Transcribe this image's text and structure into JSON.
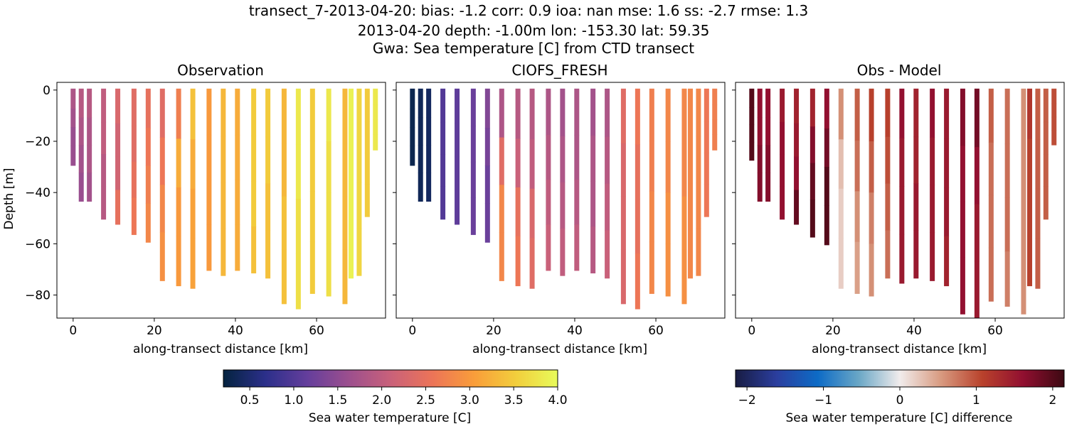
{
  "figure": {
    "title_lines": [
      "transect_7-2013-04-20: bias: -1.2  corr: 0.9  ioa: nan  mse: 1.6  ss: -2.7  rmse: 1.3",
      "2013-04-20 depth: -1.00m lon: -153.30 lat: 59.35",
      "Gwa: Sea temperature [C] from CTD transect"
    ]
  },
  "chart_data": [
    {
      "type": "scatter",
      "title": "Observation",
      "xlabel": "along-transect distance [km]",
      "ylabel": "Depth [m]",
      "xlim": [
        -4,
        77
      ],
      "ylim": [
        -89,
        3
      ],
      "xticks": [
        0,
        20,
        40,
        60
      ],
      "yticks": [
        0,
        -20,
        -40,
        -60,
        -80
      ],
      "colormap": "thermal",
      "stations": [
        {
          "x": 0,
          "bottom": -29,
          "v": [
            1.8,
            1.7,
            1.6,
            1.6
          ]
        },
        {
          "x": 2,
          "bottom": -43,
          "v": [
            1.9,
            1.8,
            1.7,
            1.6
          ]
        },
        {
          "x": 4,
          "bottom": -43,
          "v": [
            1.9,
            1.8,
            1.8,
            1.7
          ]
        },
        {
          "x": 7.5,
          "bottom": -50,
          "v": [
            2.0,
            2.0,
            1.9,
            1.9
          ]
        },
        {
          "x": 11,
          "bottom": -52,
          "v": [
            2.3,
            2.2,
            2.2,
            2.5
          ]
        },
        {
          "x": 15,
          "bottom": -56,
          "v": [
            2.4,
            2.4,
            2.5,
            2.6
          ]
        },
        {
          "x": 18.5,
          "bottom": -59,
          "v": [
            2.5,
            2.6,
            2.7,
            2.8
          ]
        },
        {
          "x": 22,
          "bottom": -74,
          "v": [
            2.4,
            2.6,
            2.8,
            2.9
          ]
        },
        {
          "x": 26,
          "bottom": -76,
          "v": [
            2.7,
            3.2,
            3.0,
            3.0
          ]
        },
        {
          "x": 29.5,
          "bottom": -77,
          "v": [
            3.4,
            3.2,
            3.1,
            3.1
          ]
        },
        {
          "x": 33.5,
          "bottom": -70,
          "v": [
            3.0,
            3.0,
            3.0,
            3.0
          ]
        },
        {
          "x": 37,
          "bottom": -72,
          "v": [
            3.3,
            3.3,
            3.3,
            3.3
          ]
        },
        {
          "x": 40.5,
          "bottom": -70,
          "v": [
            3.2,
            3.2,
            3.2,
            3.2
          ]
        },
        {
          "x": 44.5,
          "bottom": -71,
          "v": [
            3.5,
            3.5,
            3.5,
            3.4
          ]
        },
        {
          "x": 48,
          "bottom": -73,
          "v": [
            3.5,
            3.5,
            3.4,
            3.4
          ]
        },
        {
          "x": 52,
          "bottom": -83,
          "v": [
            3.3,
            3.3,
            3.4,
            3.4
          ]
        },
        {
          "x": 55.5,
          "bottom": -85,
          "v": [
            3.8,
            3.8,
            3.7,
            3.7
          ]
        },
        {
          "x": 59,
          "bottom": -79,
          "v": [
            3.5,
            3.5,
            3.5,
            3.5
          ]
        },
        {
          "x": 63,
          "bottom": -80,
          "v": [
            3.8,
            3.7,
            3.7,
            3.7
          ]
        },
        {
          "x": 67,
          "bottom": -83,
          "v": [
            3.3,
            3.3,
            3.3,
            3.3
          ]
        },
        {
          "x": 68.5,
          "bottom": -73,
          "v": [
            3.9,
            3.9,
            3.9,
            3.9
          ]
        },
        {
          "x": 70.5,
          "bottom": -72,
          "v": [
            3.6,
            3.6,
            3.6,
            3.6
          ]
        },
        {
          "x": 72.5,
          "bottom": -49,
          "v": [
            3.5,
            3.5,
            3.5,
            3.5
          ]
        },
        {
          "x": 74.5,
          "bottom": -23,
          "v": [
            3.8,
            3.8,
            3.8,
            3.8
          ]
        }
      ]
    },
    {
      "type": "scatter",
      "title": "CIOFS_FRESH",
      "xlabel": "along-transect distance [km]",
      "ylabel": "",
      "xlim": [
        -4,
        77
      ],
      "ylim": [
        -89,
        3
      ],
      "xticks": [
        0,
        20,
        40,
        60
      ],
      "yticks": [
        0,
        -20,
        -40,
        -60,
        -80
      ],
      "colormap": "thermal",
      "stations": [
        {
          "x": 0,
          "bottom": -29,
          "v": [
            0.3,
            0.3,
            0.3,
            0.3
          ]
        },
        {
          "x": 2,
          "bottom": -43,
          "v": [
            0.35,
            0.35,
            0.35,
            0.35
          ]
        },
        {
          "x": 4,
          "bottom": -43,
          "v": [
            0.4,
            0.4,
            0.4,
            0.4
          ]
        },
        {
          "x": 7.5,
          "bottom": -50,
          "v": [
            1.0,
            1.0,
            1.0,
            1.0
          ]
        },
        {
          "x": 11,
          "bottom": -52,
          "v": [
            1.1,
            1.1,
            1.1,
            1.1
          ]
        },
        {
          "x": 15,
          "bottom": -56,
          "v": [
            1.2,
            1.2,
            1.2,
            1.2
          ]
        },
        {
          "x": 18.5,
          "bottom": -59,
          "v": [
            1.4,
            1.3,
            1.2,
            1.2
          ]
        },
        {
          "x": 22,
          "bottom": -74,
          "v": [
            1.8,
            2.4,
            2.8,
            2.8
          ]
        },
        {
          "x": 26,
          "bottom": -76,
          "v": [
            1.9,
            2.1,
            2.5,
            2.6
          ]
        },
        {
          "x": 29.5,
          "bottom": -77,
          "v": [
            1.9,
            2.0,
            2.3,
            2.4
          ]
        },
        {
          "x": 33.5,
          "bottom": -70,
          "v": [
            1.8,
            1.9,
            2.0,
            2.1
          ]
        },
        {
          "x": 37,
          "bottom": -72,
          "v": [
            1.7,
            1.8,
            1.9,
            2.0
          ]
        },
        {
          "x": 40.5,
          "bottom": -70,
          "v": [
            1.8,
            1.8,
            1.9,
            2.0
          ]
        },
        {
          "x": 44.5,
          "bottom": -71,
          "v": [
            1.7,
            1.8,
            1.8,
            1.9
          ]
        },
        {
          "x": 48,
          "bottom": -73,
          "v": [
            1.8,
            1.9,
            2.0,
            2.1
          ]
        },
        {
          "x": 52,
          "bottom": -83,
          "v": [
            2.4,
            2.3,
            2.3,
            2.3
          ]
        },
        {
          "x": 55.5,
          "bottom": -85,
          "v": [
            2.6,
            2.5,
            2.5,
            2.6
          ]
        },
        {
          "x": 59,
          "bottom": -79,
          "v": [
            2.7,
            2.7,
            2.8,
            2.8
          ]
        },
        {
          "x": 63,
          "bottom": -80,
          "v": [
            2.8,
            2.8,
            2.9,
            2.9
          ]
        },
        {
          "x": 67,
          "bottom": -83,
          "v": [
            2.8,
            2.8,
            2.9,
            2.9
          ]
        },
        {
          "x": 68.5,
          "bottom": -73,
          "v": [
            2.8,
            2.8,
            2.8,
            2.8
          ]
        },
        {
          "x": 70.5,
          "bottom": -72,
          "v": [
            2.8,
            2.8,
            2.8,
            2.8
          ]
        },
        {
          "x": 72.5,
          "bottom": -49,
          "v": [
            2.6,
            2.6,
            2.6,
            2.6
          ]
        },
        {
          "x": 74.5,
          "bottom": -23,
          "v": [
            2.7,
            2.7,
            2.7,
            2.7
          ]
        }
      ]
    },
    {
      "type": "scatter",
      "title": "Obs - Model",
      "xlabel": "along-transect distance [km]",
      "ylabel": "",
      "xlim": [
        -4,
        77
      ],
      "ylim": [
        -89,
        3
      ],
      "xticks": [
        0,
        20,
        40,
        60
      ],
      "yticks": [
        0,
        -20,
        -40,
        -60,
        -80
      ],
      "colormap": "balance",
      "stations": [
        {
          "x": 0,
          "bottom": -27,
          "v": [
            2.0,
            2.0,
            2.0,
            2.0
          ]
        },
        {
          "x": 2,
          "bottom": -43,
          "v": [
            1.6,
            1.6,
            1.7,
            1.7
          ]
        },
        {
          "x": 4,
          "bottom": -43,
          "v": [
            1.6,
            1.6,
            1.7,
            1.7
          ]
        },
        {
          "x": 7.5,
          "bottom": -50,
          "v": [
            1.5,
            1.6,
            1.6,
            1.6
          ]
        },
        {
          "x": 11,
          "bottom": -52,
          "v": [
            1.4,
            1.5,
            1.6,
            1.9
          ]
        },
        {
          "x": 15,
          "bottom": -57,
          "v": [
            1.4,
            1.7,
            1.9,
            2.0
          ]
        },
        {
          "x": 18.5,
          "bottom": -60,
          "v": [
            1.6,
            1.8,
            2.0,
            2.0
          ]
        },
        {
          "x": 22,
          "bottom": -77,
          "v": [
            0.6,
            0.3,
            0.2,
            0.2
          ]
        },
        {
          "x": 26,
          "bottom": -79,
          "v": [
            0.9,
            0.8,
            0.6,
            0.5
          ]
        },
        {
          "x": 29.5,
          "bottom": -80,
          "v": [
            1.1,
            0.9,
            0.7,
            0.6
          ]
        },
        {
          "x": 33.5,
          "bottom": -73,
          "v": [
            1.1,
            1.0,
            0.9,
            0.8
          ]
        },
        {
          "x": 37,
          "bottom": -75,
          "v": [
            1.6,
            1.5,
            1.5,
            1.5
          ]
        },
        {
          "x": 40.5,
          "bottom": -73,
          "v": [
            1.4,
            1.4,
            1.5,
            1.5
          ]
        },
        {
          "x": 44.5,
          "bottom": -74,
          "v": [
            1.6,
            1.5,
            1.5,
            1.5
          ]
        },
        {
          "x": 48,
          "bottom": -76,
          "v": [
            1.5,
            1.5,
            1.5,
            1.4
          ]
        },
        {
          "x": 52,
          "bottom": -87,
          "v": [
            1.7,
            1.6,
            1.6,
            1.6
          ]
        },
        {
          "x": 55.5,
          "bottom": -89,
          "v": [
            1.8,
            1.6,
            1.5,
            1.5
          ]
        },
        {
          "x": 59,
          "bottom": -82,
          "v": [
            0.9,
            0.8,
            0.8,
            0.8
          ]
        },
        {
          "x": 63,
          "bottom": -84,
          "v": [
            0.8,
            0.8,
            0.8,
            0.7
          ]
        },
        {
          "x": 67,
          "bottom": -87,
          "v": [
            0.6,
            0.6,
            0.6,
            0.6
          ]
        },
        {
          "x": 68.5,
          "bottom": -76,
          "v": [
            1.2,
            1.1,
            1.1,
            1.1
          ]
        },
        {
          "x": 70.5,
          "bottom": -77,
          "v": [
            0.9,
            0.9,
            0.9,
            0.9
          ]
        },
        {
          "x": 72.5,
          "bottom": -50,
          "v": [
            0.9,
            0.9,
            0.9,
            0.9
          ]
        },
        {
          "x": 74.5,
          "bottom": -21,
          "v": [
            1.0,
            1.0,
            1.0,
            1.0
          ]
        }
      ]
    }
  ],
  "colorbars": [
    {
      "label": "Sea water temperature [C]",
      "range": [
        0.2,
        4.0
      ],
      "ticks": [
        0.5,
        1.0,
        1.5,
        2.0,
        2.5,
        3.0,
        3.5,
        4.0
      ],
      "tick_labels": [
        "0.5",
        "1.0",
        "1.5",
        "2.0",
        "2.5",
        "3.0",
        "3.5",
        "4.0"
      ],
      "colormap": "thermal"
    },
    {
      "label": "Sea water temperature [C] difference",
      "range": [
        -2.15,
        2.15
      ],
      "ticks": [
        -2,
        -1,
        0,
        1,
        2
      ],
      "tick_labels": [
        "−2",
        "−1",
        "0",
        "1",
        "2"
      ],
      "colormap": "balance"
    }
  ],
  "colors": {
    "thermal": [
      "#04233f",
      "#2b2f8a",
      "#643e9c",
      "#9c4f8e",
      "#c9617a",
      "#ec7458",
      "#f99d3a",
      "#f2ce3c",
      "#e8fb5a"
    ],
    "balance": [
      "#181c43",
      "#2b3e9e",
      "#0d6bc6",
      "#6aa7c6",
      "#f1ecec",
      "#d89a80",
      "#b9422c",
      "#910f30",
      "#3c0912"
    ]
  }
}
